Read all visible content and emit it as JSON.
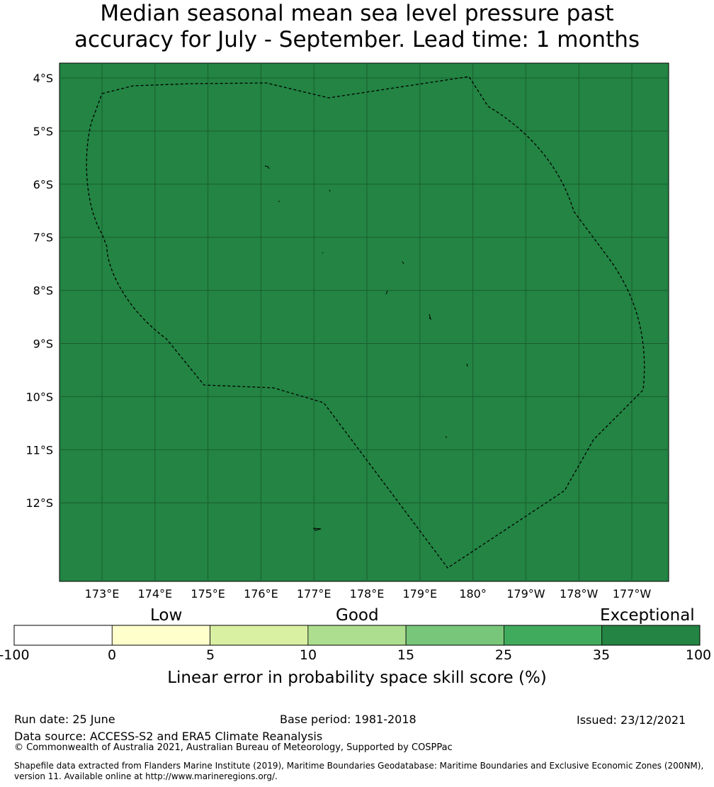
{
  "title": {
    "line1": "Median seasonal mean sea level pressure past",
    "line2": "accuracy for July - September. Lead time: 1 months"
  },
  "map": {
    "fill_color": "#238443",
    "grid_color": "#1a5e2f",
    "lat_labels": [
      "4°S",
      "5°S",
      "6°S",
      "7°S",
      "8°S",
      "9°S",
      "10°S",
      "11°S",
      "12°S"
    ],
    "lon_labels": [
      "173°E",
      "174°E",
      "175°E",
      "176°E",
      "177°E",
      "178°E",
      "179°E",
      "180°",
      "179°W",
      "178°W",
      "177°W"
    ]
  },
  "colorbar": {
    "categories": [
      "Low",
      "Good",
      "Exceptional"
    ],
    "ticks": [
      "-100",
      "0",
      "5",
      "10",
      "15",
      "25",
      "35",
      "100"
    ],
    "colors": [
      "#ffffff",
      "#ffffcc",
      "#d9f0a3",
      "#addd8e",
      "#78c679",
      "#41ab5d",
      "#238443"
    ],
    "label": "Linear error in probability space skill score (%)"
  },
  "footer": {
    "run_date": "Run date: 25 June",
    "base_period": "Base period: 1981-2018",
    "issued": "Issued: 23/12/2021",
    "data_source": "Data source: ACCESS-S2 and ERA5 Climate Reanalysis",
    "copyright": "© Commonwealth of Australia 2021, Australian Bureau of Meteorology, Supported by COSPPac",
    "shapefile_line1": "Shapefile data extracted from Flanders Marine Institute (2019), Maritime Boundaries Geodatabase: Maritime Boundaries and Exclusive Economic Zones (200NM),",
    "shapefile_line2": "version 11. Available online at http://www.marineregions.org/."
  }
}
